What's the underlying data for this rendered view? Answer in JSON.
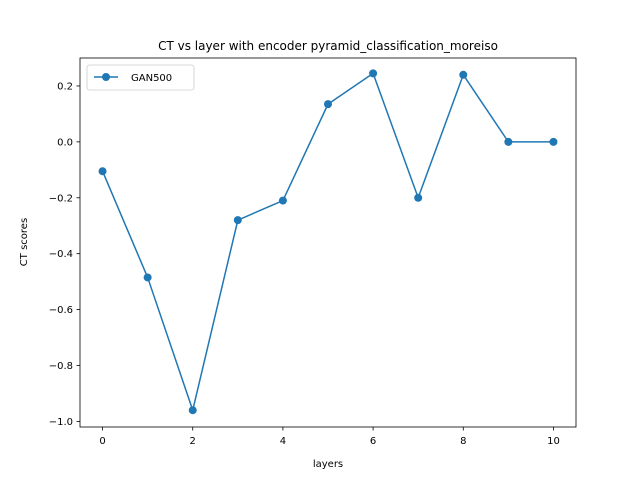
{
  "chart_data": {
    "type": "line",
    "title": "CT vs layer with encoder pyramid_classification_moreiso",
    "xlabel": "layers",
    "ylabel": "CT scores",
    "x": [
      0,
      1,
      2,
      3,
      4,
      5,
      6,
      7,
      8,
      9,
      10
    ],
    "xlim": [
      -0.5,
      10.5
    ],
    "ylim": [
      -1.02,
      0.3
    ],
    "xticks": [
      0,
      2,
      4,
      6,
      8,
      10
    ],
    "xtick_labels": [
      "0",
      "2",
      "4",
      "6",
      "8",
      "10"
    ],
    "yticks": [
      -1.0,
      -0.8,
      -0.6,
      -0.4,
      -0.2,
      0.0,
      0.2
    ],
    "ytick_labels": [
      "−1.0",
      "−0.8",
      "−0.6",
      "−0.4",
      "−0.2",
      "0.0",
      "0.2"
    ],
    "grid": false,
    "legend_position": "top-left",
    "series": [
      {
        "name": "GAN500",
        "color": "#1f77b4",
        "marker": "circle",
        "values": [
          -0.105,
          -0.485,
          -0.96,
          -0.28,
          -0.21,
          0.135,
          0.245,
          -0.2,
          0.24,
          0.0,
          0.0
        ]
      }
    ]
  }
}
